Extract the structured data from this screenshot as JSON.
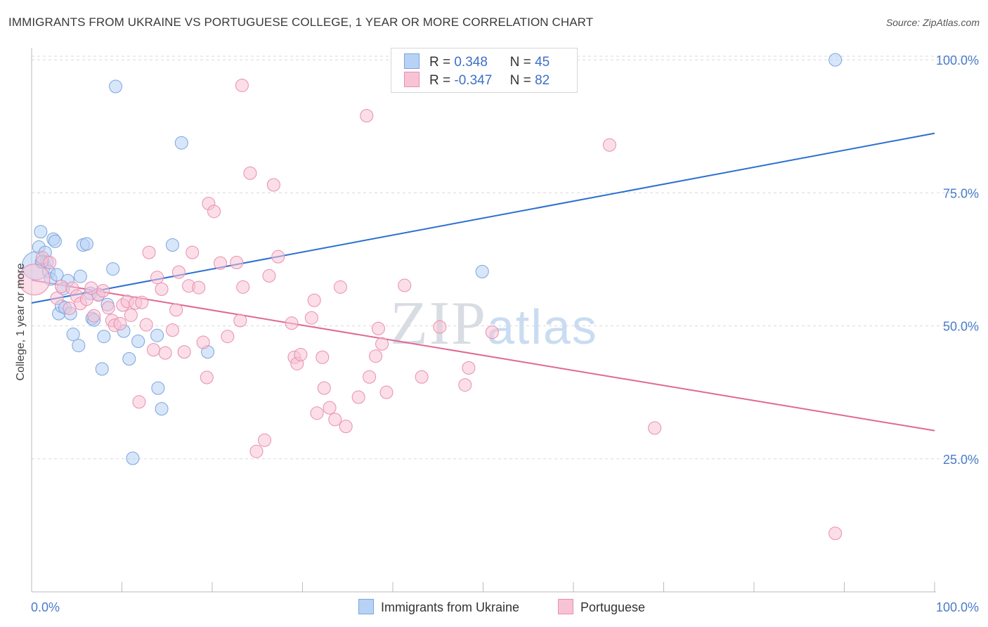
{
  "title": "IMMIGRANTS FROM UKRAINE VS PORTUGUESE COLLEGE, 1 YEAR OR MORE CORRELATION CHART",
  "source": "Source: ZipAtlas.com",
  "watermark": {
    "zip": "ZIP",
    "atlas": "atlas"
  },
  "colors": {
    "blue_fill": "#b8d2f5",
    "blue_stroke": "#7aa5dd",
    "blue_line": "#2a6fd1",
    "pink_fill": "#f7c3d5",
    "pink_stroke": "#e98eae",
    "pink_line": "#e06895",
    "grid": "#d9d9d9",
    "tick_text": "#4a7cc9"
  },
  "legend": {
    "rows": [
      {
        "r_label": "R =",
        "r_value": "0.348",
        "n_label": "N =",
        "n_value": "45"
      },
      {
        "r_label": "R =",
        "r_value": "-0.347",
        "n_label": "N =",
        "n_value": "82"
      }
    ]
  },
  "bottom_legend": [
    "Immigrants from Ukraine",
    "Portuguese"
  ],
  "chart_data": {
    "type": "scatter",
    "title": "IMMIGRANTS FROM UKRAINE VS PORTUGUESE COLLEGE, 1 YEAR OR MORE CORRELATION CHART",
    "xlabel": "",
    "ylabel": "College, 1 year or more",
    "xlim": [
      0,
      100
    ],
    "ylim": [
      0,
      102
    ],
    "x_tick_labels": [
      "0.0%",
      "100.0%"
    ],
    "y_tick_labels": [
      "25.0%",
      "50.0%",
      "75.0%",
      "100.0%"
    ],
    "y_ticks": [
      25,
      50,
      75,
      100
    ],
    "grid": true,
    "legend_position": "top-center",
    "series": [
      {
        "name": "Immigrants from Ukraine",
        "color": "#b8d2f5",
        "trend": {
          "x": [
            0,
            100
          ],
          "y": [
            54.3,
            86.2
          ]
        },
        "points": [
          [
            0.5,
            61.3,
            20
          ],
          [
            0.8,
            64.8,
            9
          ],
          [
            1.0,
            67.7,
            9
          ],
          [
            1.2,
            62.1,
            9
          ],
          [
            1.5,
            63.8,
            9
          ],
          [
            1.7,
            62.0,
            9
          ],
          [
            1.9,
            60.2,
            9
          ],
          [
            2.1,
            58.8,
            9
          ],
          [
            2.4,
            66.3,
            9
          ],
          [
            2.6,
            65.9,
            9
          ],
          [
            2.8,
            59.6,
            9
          ],
          [
            3.0,
            52.3,
            9
          ],
          [
            3.3,
            53.7,
            9
          ],
          [
            3.7,
            53.4,
            9
          ],
          [
            4.0,
            58.5,
            9
          ],
          [
            4.3,
            52.3,
            9
          ],
          [
            4.6,
            48.4,
            9
          ],
          [
            5.2,
            46.3,
            9
          ],
          [
            5.4,
            59.3,
            9
          ],
          [
            5.7,
            65.2,
            9
          ],
          [
            6.1,
            65.4,
            9
          ],
          [
            6.5,
            56.1,
            9
          ],
          [
            6.7,
            51.4,
            9
          ],
          [
            6.9,
            51.1,
            9
          ],
          [
            7.4,
            55.9,
            9
          ],
          [
            7.8,
            41.9,
            9
          ],
          [
            8.0,
            48.0,
            9
          ],
          [
            8.4,
            54.0,
            9
          ],
          [
            9.0,
            60.7,
            9
          ],
          [
            9.3,
            95.0,
            9
          ],
          [
            10.2,
            49.0,
            9
          ],
          [
            10.8,
            43.8,
            9
          ],
          [
            11.2,
            25.1,
            9
          ],
          [
            11.8,
            47.1,
            9
          ],
          [
            13.9,
            48.2,
            9
          ],
          [
            14.0,
            38.3,
            9
          ],
          [
            14.4,
            34.4,
            9
          ],
          [
            15.6,
            65.2,
            9
          ],
          [
            16.6,
            84.4,
            9
          ],
          [
            19.5,
            45.1,
            9
          ],
          [
            49.9,
            60.2,
            9
          ],
          [
            89.0,
            100.0,
            9
          ],
          [
            1.1,
            62.0,
            9
          ],
          [
            3.5,
            57.0,
            9
          ],
          [
            12.0,
            38.0,
            0
          ]
        ]
      },
      {
        "name": "Portuguese",
        "color": "#f7c3d5",
        "trend": {
          "x": [
            0,
            100
          ],
          "y": [
            58.6,
            30.3
          ]
        },
        "points": [
          [
            0.3,
            58.7,
            22
          ],
          [
            1.2,
            62.8,
            9
          ],
          [
            2.0,
            61.9,
            9
          ],
          [
            2.8,
            55.2,
            9
          ],
          [
            3.3,
            57.4,
            9
          ],
          [
            4.5,
            57.1,
            9
          ],
          [
            5.0,
            55.6,
            9
          ],
          [
            5.4,
            54.2,
            9
          ],
          [
            6.1,
            55.0,
            9
          ],
          [
            6.9,
            51.9,
            9
          ],
          [
            7.4,
            55.8,
            9
          ],
          [
            7.9,
            56.6,
            9
          ],
          [
            8.5,
            53.4,
            9
          ],
          [
            8.9,
            51.0,
            9
          ],
          [
            9.2,
            50.1,
            9
          ],
          [
            10.1,
            53.9,
            9
          ],
          [
            10.6,
            54.6,
            9
          ],
          [
            11.0,
            52.0,
            9
          ],
          [
            11.5,
            54.3,
            9
          ],
          [
            11.9,
            35.7,
            9
          ],
          [
            12.7,
            50.2,
            9
          ],
          [
            13.0,
            63.8,
            9
          ],
          [
            13.5,
            45.5,
            9
          ],
          [
            13.9,
            59.1,
            9
          ],
          [
            14.4,
            56.9,
            9
          ],
          [
            14.8,
            44.9,
            9
          ],
          [
            15.6,
            49.2,
            9
          ],
          [
            16.0,
            53.0,
            9
          ],
          [
            16.3,
            60.1,
            9
          ],
          [
            16.9,
            45.1,
            9
          ],
          [
            17.4,
            57.5,
            9
          ],
          [
            17.8,
            63.8,
            9
          ],
          [
            18.5,
            57.2,
            9
          ],
          [
            19.0,
            46.9,
            9
          ],
          [
            19.4,
            40.3,
            9
          ],
          [
            19.6,
            73.0,
            9
          ],
          [
            20.2,
            71.5,
            9
          ],
          [
            20.9,
            61.8,
            9
          ],
          [
            21.7,
            48.0,
            9
          ],
          [
            22.7,
            61.9,
            9
          ],
          [
            23.1,
            51.0,
            9
          ],
          [
            23.3,
            95.2,
            9
          ],
          [
            23.4,
            57.3,
            9
          ],
          [
            24.2,
            78.7,
            9
          ],
          [
            24.9,
            26.4,
            9
          ],
          [
            25.8,
            28.5,
            9
          ],
          [
            26.3,
            59.4,
            9
          ],
          [
            26.8,
            76.5,
            9
          ],
          [
            27.3,
            63.0,
            9
          ],
          [
            28.8,
            50.5,
            9
          ],
          [
            29.1,
            44.1,
            9
          ],
          [
            29.4,
            42.9,
            9
          ],
          [
            29.8,
            44.6,
            9
          ],
          [
            31.0,
            51.5,
            9
          ],
          [
            31.3,
            54.8,
            9
          ],
          [
            31.6,
            33.6,
            9
          ],
          [
            32.2,
            44.1,
            9
          ],
          [
            32.4,
            38.3,
            9
          ],
          [
            33.0,
            34.6,
            9
          ],
          [
            33.6,
            32.4,
            9
          ],
          [
            34.2,
            57.3,
            9
          ],
          [
            34.8,
            31.1,
            9
          ],
          [
            36.2,
            36.6,
            9
          ],
          [
            37.1,
            89.5,
            9
          ],
          [
            37.4,
            40.4,
            9
          ],
          [
            38.1,
            44.3,
            9
          ],
          [
            38.4,
            49.5,
            9
          ],
          [
            38.8,
            46.6,
            9
          ],
          [
            39.3,
            37.5,
            9
          ],
          [
            41.3,
            57.6,
            9
          ],
          [
            43.2,
            40.4,
            9
          ],
          [
            45.2,
            49.8,
            9
          ],
          [
            48.0,
            38.9,
            9
          ],
          [
            48.4,
            42.1,
            9
          ],
          [
            51.0,
            48.8,
            9
          ],
          [
            64.0,
            84.0,
            9
          ],
          [
            69.0,
            30.8,
            9
          ],
          [
            89.0,
            11.0,
            9
          ],
          [
            4.2,
            53.3,
            9
          ],
          [
            6.6,
            57.1,
            9
          ],
          [
            9.8,
            50.4,
            9
          ],
          [
            12.2,
            54.4,
            9
          ]
        ]
      }
    ]
  }
}
